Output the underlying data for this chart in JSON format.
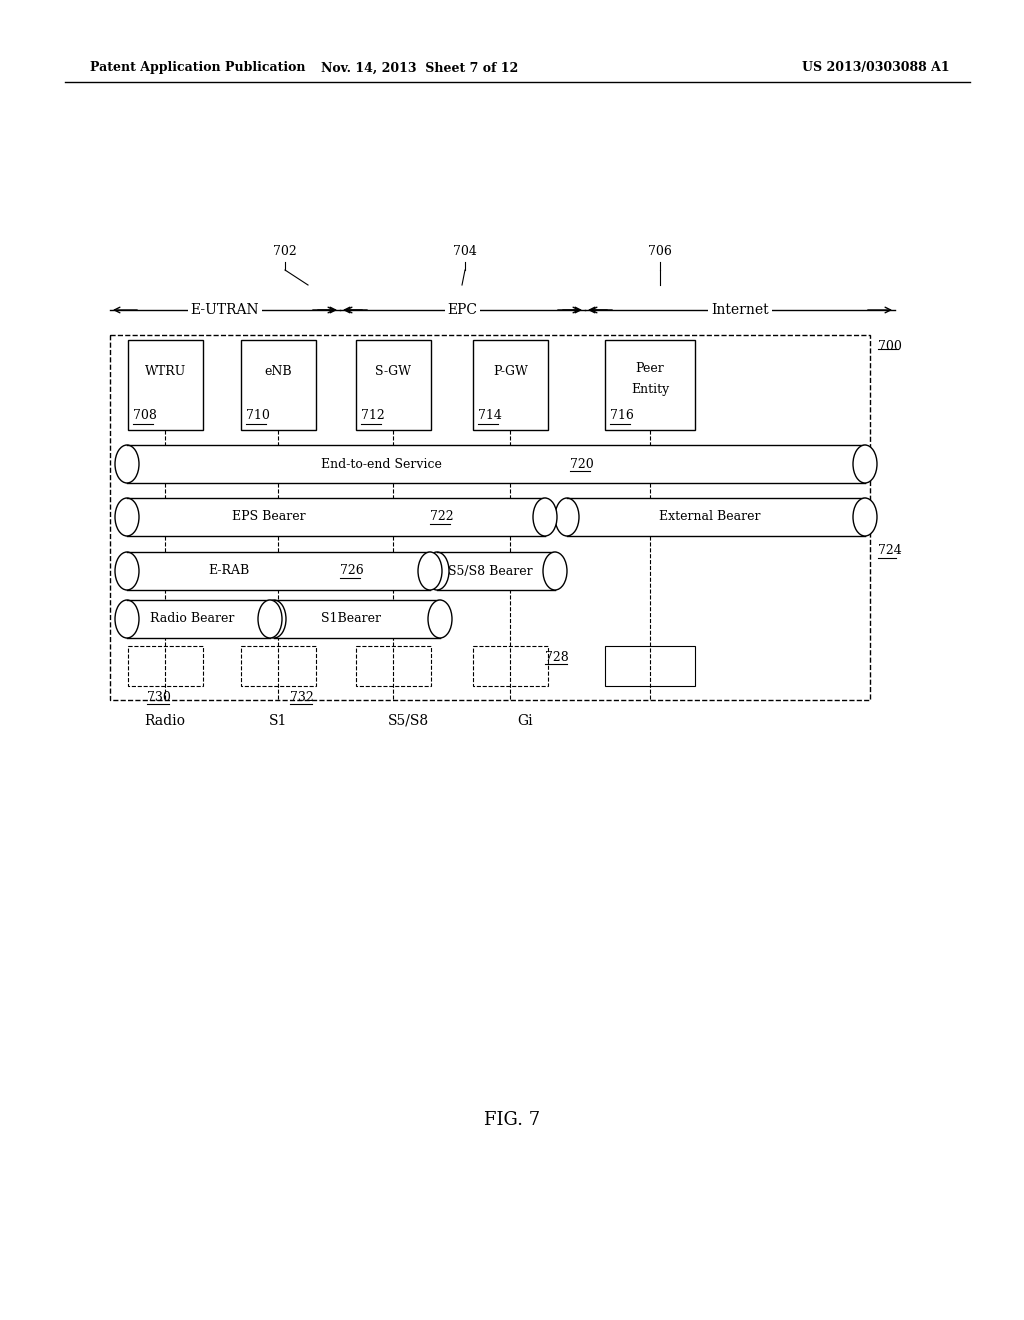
{
  "bg_color": "#ffffff",
  "header_left": "Patent Application Publication",
  "header_mid": "Nov. 14, 2013  Sheet 7 of 12",
  "header_right": "US 2013/0303088 A1",
  "fig_label": "FIG. 7",
  "diagram": {
    "ref702": "702",
    "ref704": "704",
    "ref706": "706",
    "label_eutran": "E-UTRAN",
    "label_epc": "EPC",
    "label_internet": "Internet",
    "nodes": [
      {
        "label": "WTRU",
        "ref": "708"
      },
      {
        "label": "eNB",
        "ref": "710"
      },
      {
        "label": "S-GW",
        "ref": "712"
      },
      {
        "label": "P-GW",
        "ref": "714"
      },
      {
        "label": "Peer\nEntity",
        "ref": "716"
      }
    ],
    "ref700": "700",
    "ref724": "724",
    "ref728": "728",
    "ref730": "730",
    "ref732": "732",
    "interface_labels": [
      "Radio",
      "S1",
      "S5/S8",
      "Gi"
    ]
  }
}
